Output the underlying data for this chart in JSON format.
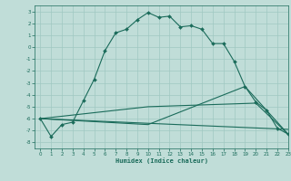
{
  "xlabel": "Humidex (Indice chaleur)",
  "bg_color": "#c0ddd8",
  "line_color": "#1a6b5a",
  "grid_color": "#9fc8c2",
  "xlim": [
    -0.5,
    23
  ],
  "ylim": [
    -8.5,
    3.5
  ],
  "yticks": [
    3,
    2,
    1,
    0,
    -1,
    -2,
    -3,
    -4,
    -5,
    -6,
    -7,
    -8
  ],
  "xticks": [
    0,
    1,
    2,
    3,
    4,
    5,
    6,
    7,
    8,
    9,
    10,
    11,
    12,
    13,
    14,
    15,
    16,
    17,
    18,
    19,
    20,
    21,
    22,
    23
  ],
  "line1_x": [
    0,
    1,
    2,
    3,
    4,
    5,
    6,
    7,
    8,
    9,
    10,
    11,
    12,
    13,
    14,
    15,
    16,
    17,
    18,
    19,
    20,
    21,
    22,
    23
  ],
  "line1_y": [
    -6.0,
    -7.5,
    -6.5,
    -6.3,
    -4.5,
    -2.7,
    -0.3,
    1.2,
    1.5,
    2.3,
    2.9,
    2.5,
    2.6,
    1.7,
    1.8,
    1.5,
    0.3,
    0.3,
    -1.2,
    -3.3,
    -4.6,
    -5.3,
    -6.8,
    -7.3
  ],
  "line2_x": [
    0,
    23
  ],
  "line2_y": [
    -6.0,
    -6.9
  ],
  "line3_x": [
    0,
    10,
    20,
    23
  ],
  "line3_y": [
    -6.0,
    -5.0,
    -4.7,
    -7.3
  ],
  "line4_x": [
    0,
    10,
    19,
    23
  ],
  "line4_y": [
    -6.0,
    -6.5,
    -3.3,
    -7.3
  ]
}
